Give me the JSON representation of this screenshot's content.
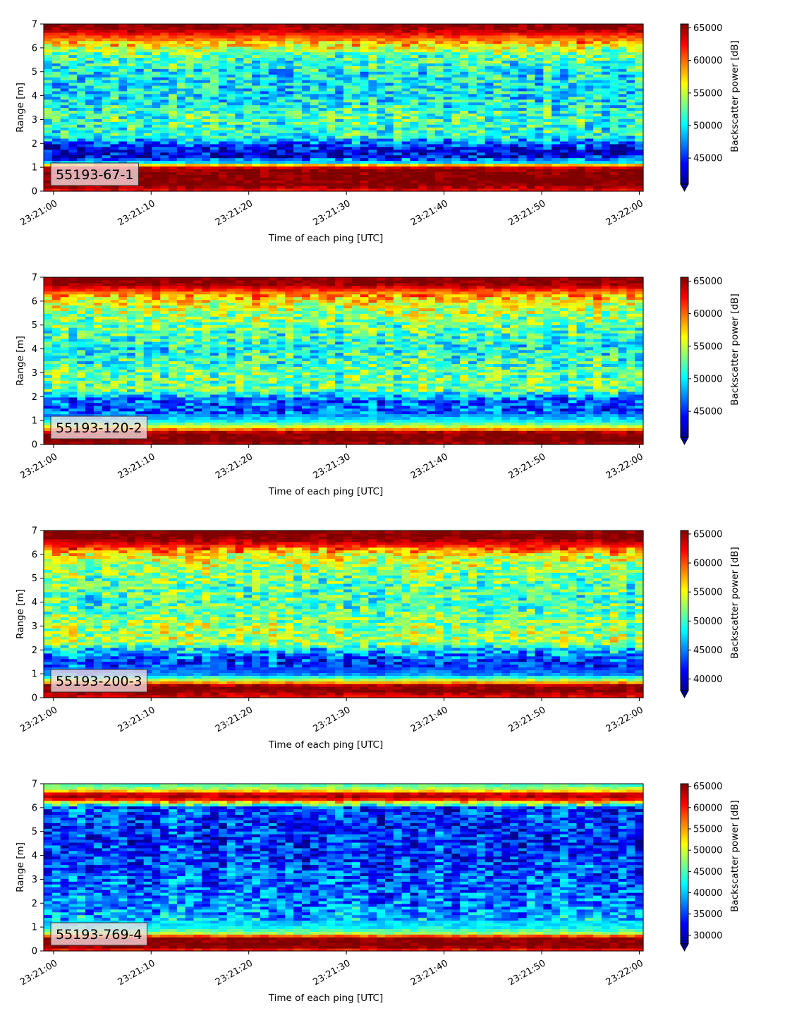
{
  "chart_data": [
    {
      "type": "heatmap",
      "panel_label": "55193-67-1",
      "xlabel": "Time of each ping [UTC]",
      "ylabel": "Range [m]",
      "x_ticks": [
        "23:21:00",
        "23:21:10",
        "23:21:20",
        "23:21:30",
        "23:21:40",
        "23:21:50",
        "23:22:00"
      ],
      "xlim": [
        "23:20:59.0",
        "23:22:00.4"
      ],
      "y_ticks": [
        0,
        1,
        2,
        3,
        4,
        5,
        6,
        7
      ],
      "ylim": [
        0,
        7
      ],
      "colorbar_label": "Backscatter power [dB]",
      "colorbar_ticks": [
        45000,
        50000,
        55000,
        60000,
        65000
      ],
      "clim": [
        41000,
        65600
      ],
      "colorbar_extend": "min",
      "colormap": "jet",
      "profile": [
        [
          0.0,
          62000
        ],
        [
          0.25,
          65600
        ],
        [
          0.55,
          65600
        ],
        [
          0.85,
          65600
        ],
        [
          1.05,
          63000
        ],
        [
          1.2,
          50000
        ],
        [
          1.5,
          43000
        ],
        [
          1.9,
          45000
        ],
        [
          2.3,
          51000
        ],
        [
          3.0,
          52000
        ],
        [
          4.0,
          50000
        ],
        [
          5.0,
          50500
        ],
        [
          5.8,
          53000
        ],
        [
          6.2,
          58000
        ],
        [
          6.5,
          61000
        ],
        [
          6.75,
          64500
        ],
        [
          7.0,
          65600
        ]
      ]
    },
    {
      "type": "heatmap",
      "panel_label": "55193-120-2",
      "xlabel": "Time of each ping [UTC]",
      "ylabel": "Range [m]",
      "x_ticks": [
        "23:21:00",
        "23:21:10",
        "23:21:20",
        "23:21:30",
        "23:21:40",
        "23:21:50",
        "23:22:00"
      ],
      "xlim": [
        "23:20:59.0",
        "23:22:00.4"
      ],
      "y_ticks": [
        0,
        1,
        2,
        3,
        4,
        5,
        6,
        7
      ],
      "ylim": [
        0,
        7
      ],
      "colorbar_label": "Backscatter power [dB]",
      "colorbar_ticks": [
        45000,
        50000,
        55000,
        60000,
        65000
      ],
      "clim": [
        41000,
        65600
      ],
      "colorbar_extend": "min",
      "colormap": "jet",
      "profile": [
        [
          0.0,
          64000
        ],
        [
          0.15,
          65600
        ],
        [
          0.5,
          65600
        ],
        [
          0.7,
          57000
        ],
        [
          1.0,
          50000
        ],
        [
          1.4,
          46000
        ],
        [
          1.9,
          46500
        ],
        [
          2.3,
          53000
        ],
        [
          3.0,
          52500
        ],
        [
          4.0,
          50500
        ],
        [
          5.0,
          52500
        ],
        [
          6.0,
          56000
        ],
        [
          6.4,
          60000
        ],
        [
          6.7,
          65000
        ],
        [
          7.0,
          65600
        ]
      ]
    },
    {
      "type": "heatmap",
      "panel_label": "55193-200-3",
      "xlabel": "Time of each ping [UTC]",
      "ylabel": "Range [m]",
      "x_ticks": [
        "23:21:00",
        "23:21:10",
        "23:21:20",
        "23:21:30",
        "23:21:40",
        "23:21:50",
        "23:22:00"
      ],
      "xlim": [
        "23:20:59.0",
        "23:22:00.4"
      ],
      "y_ticks": [
        0,
        1,
        2,
        3,
        4,
        5,
        6,
        7
      ],
      "ylim": [
        0,
        7
      ],
      "colorbar_label": "Backscatter power [dB]",
      "colorbar_ticks": [
        40000,
        45000,
        50000,
        55000,
        60000,
        65000
      ],
      "clim": [
        38000,
        65600
      ],
      "colorbar_extend": "min",
      "colormap": "jet",
      "profile": [
        [
          0.0,
          62000
        ],
        [
          0.3,
          65600
        ],
        [
          0.5,
          65600
        ],
        [
          0.7,
          55000
        ],
        [
          1.0,
          45000
        ],
        [
          1.5,
          42000
        ],
        [
          2.0,
          47000
        ],
        [
          2.3,
          53000
        ],
        [
          3.0,
          52500
        ],
        [
          4.0,
          50000
        ],
        [
          5.0,
          51000
        ],
        [
          6.0,
          55000
        ],
        [
          6.4,
          62000
        ],
        [
          6.7,
          65600
        ],
        [
          7.0,
          65600
        ]
      ]
    },
    {
      "type": "heatmap",
      "panel_label": "55193-769-4",
      "xlabel": "Time of each ping [UTC]",
      "ylabel": "Range [m]",
      "x_ticks": [
        "23:21:00",
        "23:21:10",
        "23:21:20",
        "23:21:30",
        "23:21:40",
        "23:21:50",
        "23:22:00"
      ],
      "xlim": [
        "23:20:59.0",
        "23:22:00.4"
      ],
      "y_ticks": [
        0,
        1,
        2,
        3,
        4,
        5,
        6,
        7
      ],
      "ylim": [
        0,
        7
      ],
      "colorbar_label": "Backscatter power [dB]",
      "colorbar_ticks": [
        30000,
        35000,
        40000,
        45000,
        50000,
        55000,
        60000,
        65000
      ],
      "clim": [
        28000,
        65600
      ],
      "colorbar_extend": "min",
      "colormap": "jet",
      "profile": [
        [
          0.0,
          58000
        ],
        [
          0.2,
          65600
        ],
        [
          0.55,
          65600
        ],
        [
          0.75,
          48000
        ],
        [
          1.0,
          42000
        ],
        [
          1.5,
          39000
        ],
        [
          2.0,
          37500
        ],
        [
          3.0,
          36000
        ],
        [
          4.0,
          34500
        ],
        [
          5.0,
          34000
        ],
        [
          6.0,
          35000
        ],
        [
          6.35,
          60000
        ],
        [
          6.55,
          65600
        ],
        [
          6.75,
          50000
        ],
        [
          7.0,
          44000
        ]
      ]
    }
  ]
}
